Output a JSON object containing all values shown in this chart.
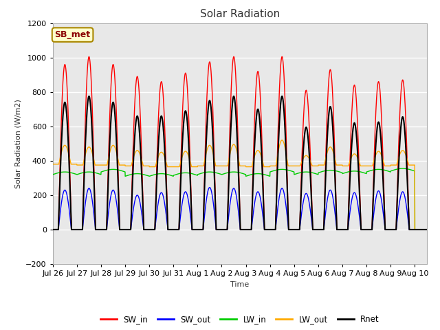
{
  "title": "Solar Radiation",
  "xlabel": "Time",
  "ylabel": "Solar Radiation (W/m2)",
  "ylim": [
    -200,
    1200
  ],
  "yticks": [
    -200,
    0,
    200,
    400,
    600,
    800,
    1000,
    1200
  ],
  "num_days": 15.5,
  "num_points": 3100,
  "colors": {
    "SW_in": "#ff0000",
    "SW_out": "#0000ff",
    "LW_in": "#00cc00",
    "LW_out": "#ffaa00",
    "Rnet": "#000000"
  },
  "line_widths": {
    "SW_in": 1.0,
    "SW_out": 1.0,
    "LW_in": 1.0,
    "LW_out": 1.0,
    "Rnet": 1.5
  },
  "annotation_label": "SB_met",
  "annotation_color": "#8b0000",
  "annotation_bg": "#ffffcc",
  "annotation_border": "#aa8800",
  "fig_bg": "#ffffff",
  "plot_bg": "#e8e8e8",
  "grid_color": "#ffffff",
  "xtick_labels": [
    "Jul 26",
    "Jul 27",
    "Jul 28",
    "Jul 29",
    "Jul 30",
    "Jul 31",
    "Aug 1",
    "Aug 2",
    "Aug 3",
    "Aug 4",
    "Aug 5",
    "Aug 6",
    "Aug 7",
    "Aug 8",
    "Aug 9",
    "Aug 10"
  ],
  "sw_in_peaks": [
    960,
    1005,
    960,
    890,
    860,
    910,
    975,
    1005,
    920,
    1005,
    810,
    930,
    840,
    860,
    870
  ],
  "sw_out_peaks": [
    230,
    240,
    230,
    200,
    215,
    220,
    245,
    240,
    220,
    240,
    210,
    230,
    215,
    225,
    220
  ],
  "rnet_peaks": [
    740,
    775,
    740,
    660,
    660,
    690,
    750,
    775,
    700,
    775,
    595,
    715,
    620,
    625,
    655
  ],
  "lw_in_values": [
    320,
    320,
    335,
    310,
    310,
    315,
    320,
    320,
    310,
    335,
    320,
    330,
    325,
    335,
    340
  ],
  "lw_out_peaks": [
    490,
    480,
    490,
    460,
    450,
    455,
    490,
    495,
    460,
    520,
    430,
    480,
    440,
    455,
    460
  ],
  "lw_out_base": [
    380,
    375,
    375,
    370,
    365,
    365,
    370,
    370,
    365,
    370,
    370,
    375,
    370,
    370,
    375
  ]
}
